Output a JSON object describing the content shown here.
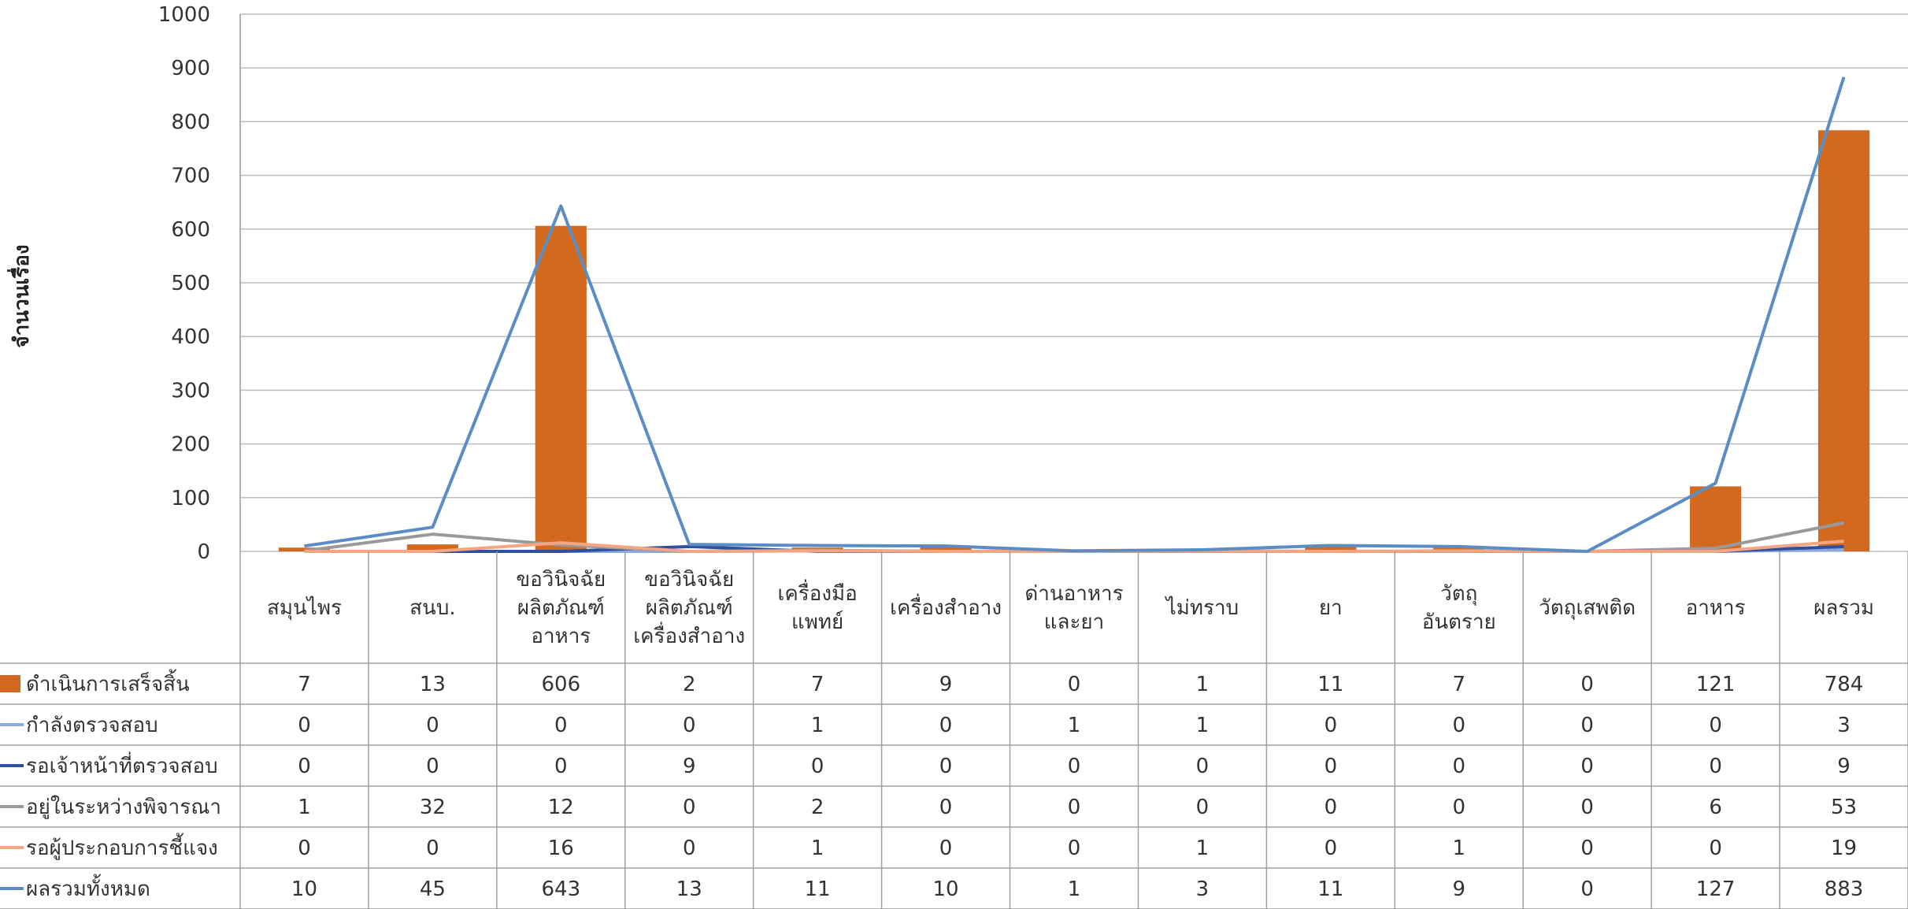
{
  "chart_data": {
    "type": "bar",
    "title": "",
    "xlabel": "",
    "ylabel": "จำนวนเรื่อง",
    "ylim": [
      0,
      1000
    ],
    "yticks": [
      0,
      100,
      200,
      300,
      400,
      500,
      600,
      700,
      800,
      900,
      1000
    ],
    "grid": true,
    "legend": "table-left",
    "categories": [
      [
        "สมุนไพร"
      ],
      [
        "สนบ."
      ],
      [
        "ขอวินิจฉัย",
        "ผลิตภัณฑ์",
        "อาหาร"
      ],
      [
        "ขอวินิจฉัย",
        "ผลิตภัณฑ์",
        "เครื่องสำอาง"
      ],
      [
        "เครื่องมือ",
        "แพทย์"
      ],
      [
        "เครื่องสำอาง"
      ],
      [
        "ด่านอาหาร",
        "และยา"
      ],
      [
        "ไม่ทราบ"
      ],
      [
        "ยา"
      ],
      [
        "วัตถุ",
        "อันตราย"
      ],
      [
        "วัตถุเสพติด"
      ],
      [
        "อาหาร"
      ],
      [
        "ผลรวม"
      ]
    ],
    "series": [
      {
        "name": "ดำเนินการเสร็จสิ้น",
        "kind": "bar",
        "color": "#D2691E",
        "values": [
          7,
          13,
          606,
          2,
          7,
          9,
          0,
          1,
          11,
          7,
          0,
          121,
          784
        ]
      },
      {
        "name": "กำลังตรวจสอบ",
        "kind": "line",
        "color": "#8EA9DB",
        "values": [
          0,
          0,
          0,
          0,
          1,
          0,
          1,
          1,
          0,
          0,
          0,
          0,
          3
        ]
      },
      {
        "name": "รอเจ้าหน้าที่ตรวจสอบ",
        "kind": "line",
        "color": "#2F4F9F",
        "values": [
          0,
          0,
          0,
          9,
          0,
          0,
          0,
          0,
          0,
          0,
          0,
          0,
          9
        ]
      },
      {
        "name": "อยู่ในระหว่างพิจารณา",
        "kind": "line",
        "color": "#999999",
        "values": [
          1,
          32,
          12,
          0,
          2,
          0,
          0,
          0,
          0,
          0,
          0,
          6,
          53
        ]
      },
      {
        "name": "รอผู้ประกอบการชี้แจง",
        "kind": "line",
        "color": "#F4A582",
        "values": [
          0,
          0,
          16,
          0,
          1,
          0,
          0,
          1,
          0,
          1,
          0,
          0,
          19
        ]
      },
      {
        "name": "ผลรวมทั้งหมด",
        "kind": "line",
        "color": "#5B8DC4",
        "values": [
          10,
          45,
          643,
          13,
          11,
          10,
          1,
          3,
          11,
          9,
          0,
          127,
          883
        ]
      }
    ]
  }
}
